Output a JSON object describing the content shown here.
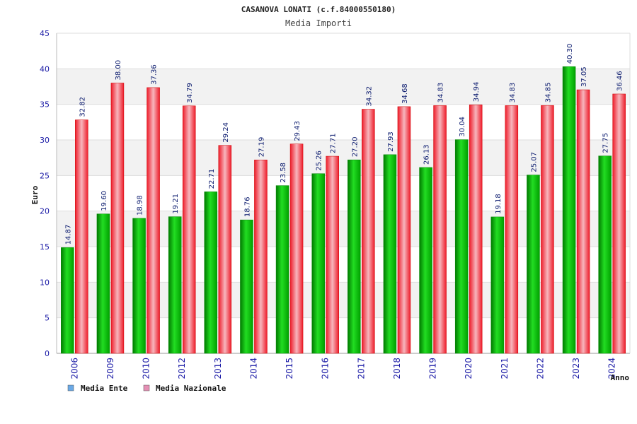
{
  "chart_data": {
    "type": "bar",
    "title": "CASANOVA LONATI (c.f.84000550180)",
    "subtitle": "Media Importi",
    "ylabel": "Euro",
    "xlabel": "Anno",
    "ylim": [
      0,
      45
    ],
    "yticks": [
      0,
      5,
      10,
      15,
      20,
      25,
      30,
      35,
      40,
      45
    ],
    "grid": true,
    "legend_position": "bottom-left",
    "categories": [
      "2006",
      "2009",
      "2010",
      "2012",
      "2013",
      "2014",
      "2015",
      "2016",
      "2017",
      "2018",
      "2019",
      "2020",
      "2021",
      "2022",
      "2023",
      "2024"
    ],
    "series": [
      {
        "name": "Media Ente",
        "color": "#00bb00",
        "legend_color": "#6aa9e6",
        "values": [
          14.87,
          19.6,
          18.98,
          19.21,
          22.71,
          18.76,
          23.58,
          25.26,
          27.2,
          27.93,
          26.13,
          30.04,
          19.18,
          25.07,
          40.3,
          27.75
        ],
        "labels": [
          "14.87",
          "19.60",
          "18.98",
          "19.21",
          "22.71",
          "18.76",
          "23.58",
          "25.26",
          "27.20",
          "27.93",
          "26.13",
          "30.04",
          "19.18",
          "25.07",
          "40.30",
          "27.75"
        ]
      },
      {
        "name": "Media Nazionale",
        "color": "#ee1c2a",
        "legend_color": "#e58fb4",
        "values": [
          32.82,
          38.0,
          37.36,
          34.79,
          29.24,
          27.19,
          29.43,
          27.71,
          34.32,
          34.68,
          34.83,
          34.94,
          34.83,
          34.85,
          37.05,
          36.46
        ],
        "labels": [
          "32.82",
          "38.00",
          "37.36",
          "34.79",
          "29.24",
          "27.19",
          "29.43",
          "27.71",
          "34.32",
          "34.68",
          "34.83",
          "34.94",
          "34.83",
          "34.85",
          "37.05",
          "36.46"
        ]
      }
    ]
  }
}
